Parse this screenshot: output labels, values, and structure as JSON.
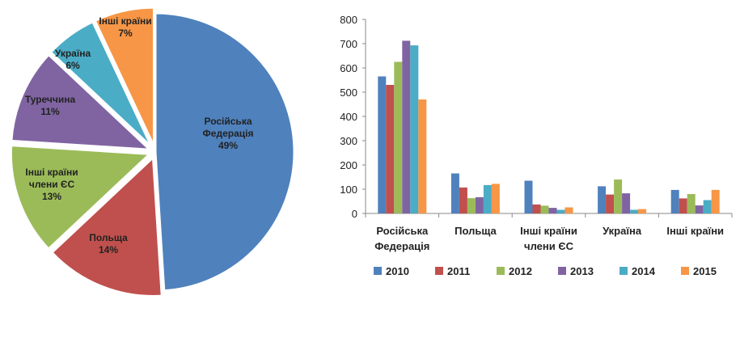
{
  "chart_data": [
    {
      "type": "pie",
      "slices": [
        {
          "label_lines": [
            "Російська",
            "Федерація"
          ],
          "pct_label": "49%",
          "value": 49,
          "color": "#4F81BD"
        },
        {
          "label_lines": [
            "Польща"
          ],
          "pct_label": "14%",
          "value": 14,
          "color": "#C0504D"
        },
        {
          "label_lines": [
            "Інші країни",
            "члени ЄС"
          ],
          "pct_label": "13%",
          "value": 13,
          "color": "#9BBB59"
        },
        {
          "label_lines": [
            "Туреччина"
          ],
          "pct_label": "11%",
          "value": 11,
          "color": "#8064A2"
        },
        {
          "label_lines": [
            "Україна"
          ],
          "pct_label": "6%",
          "value": 6,
          "color": "#4BACC6"
        },
        {
          "label_lines": [
            "Інші країни"
          ],
          "pct_label": "7%",
          "value": 7,
          "color": "#F79646"
        }
      ]
    },
    {
      "type": "bar",
      "categories": [
        {
          "lines": [
            "Російська",
            "Федерація"
          ]
        },
        {
          "lines": [
            "Польща"
          ]
        },
        {
          "lines": [
            "Інші країни",
            "члени ЄС"
          ]
        },
        {
          "lines": [
            "Україна"
          ]
        },
        {
          "lines": [
            "Інші країни"
          ]
        }
      ],
      "ylim": [
        0,
        800
      ],
      "yticks": [
        "0",
        "100",
        "200",
        "300",
        "400",
        "500",
        "600",
        "700",
        "800"
      ],
      "grid": false,
      "legend_position": "bottom",
      "series": [
        {
          "name": "2010",
          "color": "#4F81BD",
          "values": [
            565,
            165,
            135,
            112,
            97
          ]
        },
        {
          "name": "2011",
          "color": "#C0504D",
          "values": [
            530,
            107,
            37,
            78,
            62
          ]
        },
        {
          "name": "2012",
          "color": "#9BBB59",
          "values": [
            625,
            63,
            32,
            140,
            80
          ]
        },
        {
          "name": "2013",
          "color": "#8064A2",
          "values": [
            712,
            67,
            23,
            83,
            33
          ]
        },
        {
          "name": "2014",
          "color": "#4BACC6",
          "values": [
            693,
            117,
            15,
            15,
            55
          ]
        },
        {
          "name": "2015",
          "color": "#F79646",
          "values": [
            470,
            122,
            25,
            18,
            97
          ]
        }
      ]
    }
  ]
}
